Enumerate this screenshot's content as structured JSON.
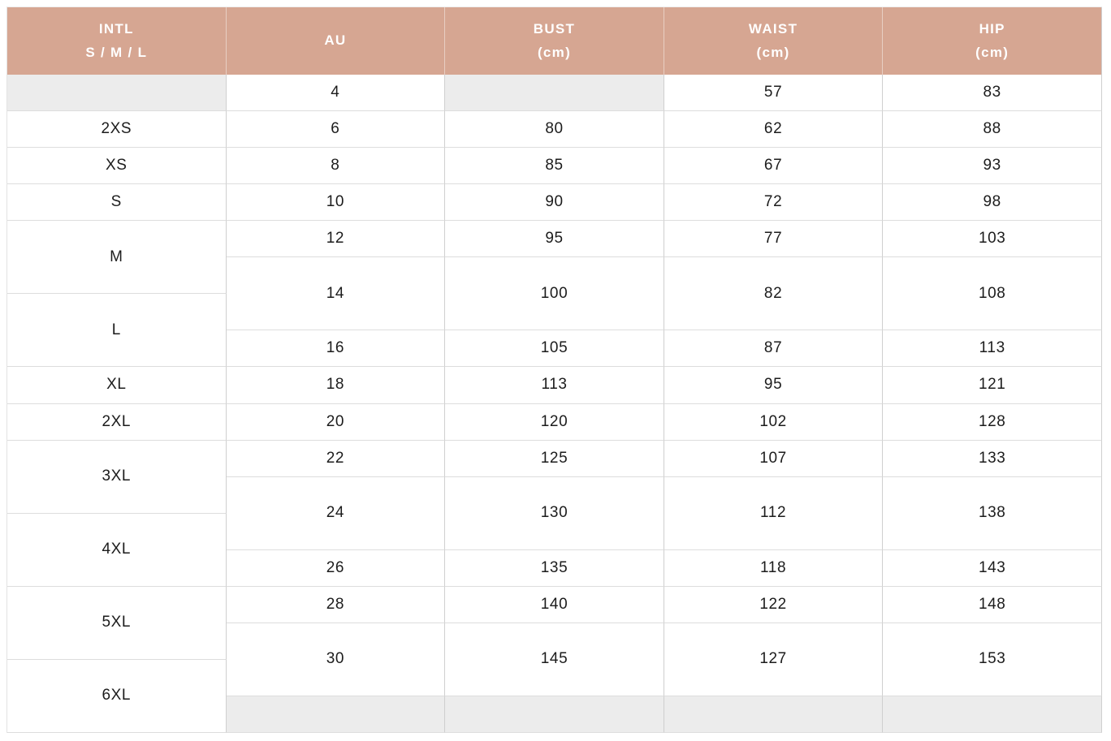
{
  "table": {
    "headers": [
      {
        "line1": "INTL",
        "line2": "S / M / L"
      },
      {
        "line1": "AU",
        "line2": ""
      },
      {
        "line1": "BUST",
        "line2": "(cm)"
      },
      {
        "line1": "WAIST",
        "line2": "(cm)"
      },
      {
        "line1": "HIP",
        "line2": "(cm)"
      }
    ],
    "intl_sizes": [
      "",
      "2XS",
      "XS",
      "S",
      "M",
      "L",
      "XL",
      "2XL",
      "3XL",
      "4XL",
      "5XL",
      "6XL"
    ],
    "rows": [
      {
        "au": "4",
        "bust": "",
        "waist": "57",
        "hip": "83"
      },
      {
        "au": "6",
        "bust": "80",
        "waist": "62",
        "hip": "88"
      },
      {
        "au": "8",
        "bust": "85",
        "waist": "67",
        "hip": "93"
      },
      {
        "au": "10",
        "bust": "90",
        "waist": "72",
        "hip": "98"
      },
      {
        "au": "12",
        "bust": "95",
        "waist": "77",
        "hip": "103"
      },
      {
        "au": "14",
        "bust": "100",
        "waist": "82",
        "hip": "108"
      },
      {
        "au": "16",
        "bust": "105",
        "waist": "87",
        "hip": "113"
      },
      {
        "au": "18",
        "bust": "113",
        "waist": "95",
        "hip": "121"
      },
      {
        "au": "20",
        "bust": "120",
        "waist": "102",
        "hip": "128"
      },
      {
        "au": "22",
        "bust": "125",
        "waist": "107",
        "hip": "133"
      },
      {
        "au": "24",
        "bust": "130",
        "waist": "112",
        "hip": "138"
      },
      {
        "au": "26",
        "bust": "135",
        "waist": "118",
        "hip": "143"
      },
      {
        "au": "28",
        "bust": "140",
        "waist": "122",
        "hip": "148"
      },
      {
        "au": "30",
        "bust": "145",
        "waist": "127",
        "hip": "153"
      },
      {
        "au": "",
        "bust": "",
        "waist": "",
        "hip": ""
      }
    ],
    "colors": {
      "header_bg": "#d6a692",
      "header_text": "#ffffff",
      "empty_cell_bg": "#ececec",
      "border_vertical": "#cfcfcf",
      "border_horizontal": "#dddddd",
      "body_text": "#1c1c1c"
    }
  }
}
